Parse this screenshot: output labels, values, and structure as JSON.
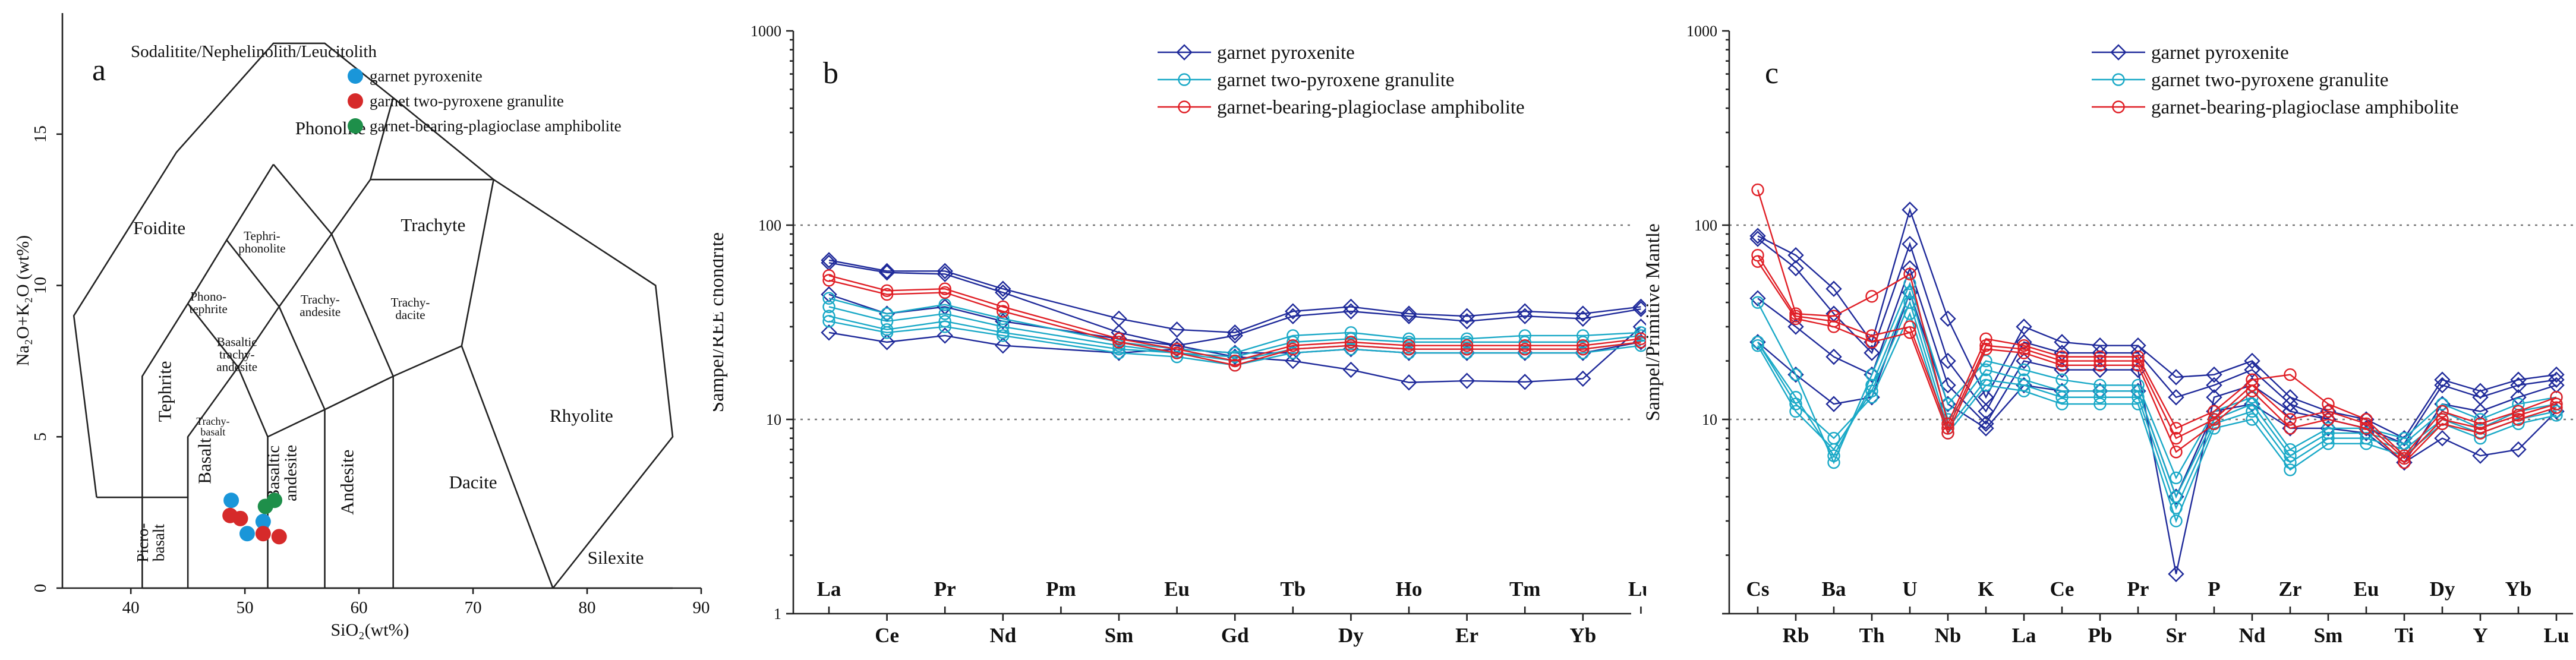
{
  "colors": {
    "garnet_pyroxenite": "#1f2a9a",
    "garnet_two_pyroxene_granulite": "#1aa9c7",
    "garnet_bearing_plagioclase_amphibolite": "#e01f26",
    "tas_pyroxenite": "#1a96d9",
    "tas_granulite": "#d62a2a",
    "tas_amphibolite": "#1e8f4a"
  },
  "chart_data": [
    {
      "type": "scatter",
      "panel_letter": "a",
      "title": "Sodalitite/Nephelinolith/Leucitolith",
      "xlabel": "SiO₂(wt%)",
      "ylabel": "Na₂O+K₂O (wt%)",
      "xlim": [
        34,
        90
      ],
      "ylim": [
        0,
        19
      ],
      "xticks": [
        40,
        50,
        60,
        70,
        80,
        90
      ],
      "yticks": [
        0,
        5,
        10,
        15
      ],
      "legend": [
        "garnet pyroxenite",
        "garnet two-pyroxene granulite",
        "garnet-bearing-plagioclase amphibolite"
      ],
      "field_labels": [
        "Phonolite",
        "Foidite",
        "Tephri-\nphonolite",
        "Trachyte",
        "Phono-\ntephrite",
        "Trachy-\nandesite",
        "Trachy-\ndacite",
        "Tephrite",
        "Basaltic\ntrachy-\nandesite",
        "Trachy-\nbasalt",
        "Rhyolite",
        "Basalt",
        "Basaltic\nandesite",
        "Andesite",
        "Dacite",
        "Picro-\nbasalt",
        "Silexite"
      ],
      "series": [
        {
          "name": "garnet pyroxenite",
          "color_key": "tas_pyroxenite",
          "points": [
            [
              48.8,
              2.9
            ],
            [
              50.2,
              1.8
            ],
            [
              51.6,
              2.2
            ]
          ]
        },
        {
          "name": "garnet two-pyroxene granulite",
          "color_key": "tas_granulite",
          "points": [
            [
              48.7,
              2.4
            ],
            [
              49.6,
              2.3
            ],
            [
              51.6,
              1.8
            ],
            [
              53,
              1.7
            ]
          ]
        },
        {
          "name": "garnet-bearing-plagioclase amphibolite",
          "color_key": "tas_amphibolite",
          "points": [
            [
              51.8,
              2.7
            ],
            [
              52.6,
              2.9
            ]
          ]
        }
      ]
    },
    {
      "type": "line",
      "panel_letter": "b",
      "ylabel": "Sampel/REE chondrite",
      "yscale": "log",
      "ylim": [
        1,
        1000
      ],
      "ytick_labels": [
        "1",
        "10",
        "100",
        "1000"
      ],
      "categories": [
        "La",
        "Ce",
        "Pr",
        "Nd",
        "Pm",
        "Sm",
        "Eu",
        "Gd",
        "Tb",
        "Dy",
        "Ho",
        "Er",
        "Tm",
        "Yb",
        "Lu"
      ],
      "legend": [
        "garnet pyroxenite",
        "garnet two-pyroxene granulite",
        "garnet-bearing-plagioclase amphibolite"
      ],
      "series": [
        {
          "name": "garnet pyroxenite",
          "group": "garnet pyroxenite",
          "values": [
            66,
            58,
            58,
            47,
            null,
            33,
            29,
            28,
            36,
            38,
            35,
            34,
            36,
            35,
            38
          ]
        },
        {
          "name": "garnet pyroxenite",
          "group": "garnet pyroxenite",
          "values": [
            64,
            57,
            56,
            45,
            null,
            28,
            24,
            27,
            34,
            36,
            34,
            32,
            34,
            33,
            37
          ]
        },
        {
          "name": "garnet pyroxenite",
          "group": "garnet pyroxenite",
          "values": [
            44,
            35,
            38,
            32,
            null,
            26,
            24,
            21,
            20,
            18,
            15.5,
            15.8,
            15.6,
            16.2,
            30
          ]
        },
        {
          "name": "garnet pyroxenite",
          "group": "garnet pyroxenite",
          "values": [
            28,
            25,
            27,
            24,
            null,
            22,
            23,
            22,
            22,
            23,
            22,
            22,
            22,
            22,
            25
          ]
        },
        {
          "name": "garnet two-pyroxene granulite",
          "group": "garnet two-pyroxene granulite",
          "values": [
            42,
            35,
            39,
            33,
            null,
            25,
            23,
            22,
            27,
            28,
            26,
            26,
            27,
            27,
            28
          ]
        },
        {
          "name": "garnet two-pyroxene granulite",
          "group": "garnet two-pyroxene granulite",
          "values": [
            38,
            32,
            35,
            30,
            null,
            24,
            22,
            21,
            25,
            26,
            25,
            25,
            25,
            25,
            27
          ]
        },
        {
          "name": "garnet two-pyroxene granulite",
          "group": "garnet two-pyroxene granulite",
          "values": [
            34,
            29,
            32,
            28,
            null,
            23,
            22,
            20,
            23,
            24,
            23,
            23,
            23,
            23,
            25
          ]
        },
        {
          "name": "garnet two-pyroxene granulite",
          "group": "garnet two-pyroxene granulite",
          "values": [
            32,
            28,
            30,
            27,
            null,
            22,
            21,
            19,
            22,
            23,
            22,
            22,
            22,
            22,
            24
          ]
        },
        {
          "name": "garnet-bearing-plagioclase amphibolite",
          "group": "garnet-bearing-plagioclase amphibolite",
          "values": [
            55,
            46,
            47,
            38,
            null,
            26,
            23,
            20,
            24,
            25,
            24,
            24,
            24,
            24,
            26
          ]
        },
        {
          "name": "garnet-bearing-plagioclase amphibolite",
          "group": "garnet-bearing-plagioclase amphibolite",
          "values": [
            52,
            44,
            45,
            36,
            null,
            25,
            22,
            19,
            23,
            24,
            23,
            23,
            23,
            23,
            25
          ]
        }
      ]
    },
    {
      "type": "line",
      "panel_letter": "c",
      "ylabel": "Sampel/Primitive Mantle",
      "yscale": "log",
      "ylim": [
        1,
        1000
      ],
      "ytick_labels": [
        "10",
        "100",
        "1000"
      ],
      "categories": [
        "Cs",
        "Rb",
        "Ba",
        "Th",
        "U",
        "Nb",
        "K",
        "La",
        "Ce",
        "Pb",
        "Pr",
        "Sr",
        "P",
        "Nd",
        "Zr",
        "Sm",
        "Eu",
        "Ti",
        "Dy",
        "Y",
        "Yb",
        "Lu"
      ],
      "legend": [
        "garnet pyroxenite",
        "garnet two-pyroxene granulite",
        "garnet-bearing-plagioclase amphibolite"
      ],
      "series": [
        {
          "name": "garnet pyroxenite",
          "group": "garnet pyroxenite",
          "values": [
            88,
            70,
            47,
            25,
            120,
            33,
            13,
            30,
            25,
            24,
            24,
            16.5,
            17,
            20,
            13,
            11,
            10,
            8,
            16,
            14,
            16,
            17
          ]
        },
        {
          "name": "garnet pyroxenite",
          "group": "garnet pyroxenite",
          "values": [
            85,
            60,
            35,
            22,
            80,
            20,
            11,
            25,
            22,
            22,
            22,
            13,
            15,
            18,
            12,
            10,
            9,
            7.5,
            15,
            13,
            15,
            16
          ]
        },
        {
          "name": "garnet pyroxenite",
          "group": "garnet pyroxenite",
          "values": [
            42,
            30,
            21,
            17,
            60,
            15,
            9.5,
            20,
            18,
            18,
            18,
            1.6,
            13,
            15,
            11,
            10,
            9,
            6,
            12,
            11,
            13,
            15
          ]
        },
        {
          "name": "garnet pyroxenite",
          "group": "garnet pyroxenite",
          "values": [
            25,
            17,
            12,
            13,
            45,
            12,
            9,
            15,
            14,
            14,
            14,
            4,
            11,
            12,
            9,
            9,
            8.5,
            6,
            8,
            6.5,
            7,
            11
          ]
        },
        {
          "name": "garnet two-pyroxene granulite",
          "group": "garnet two-pyroxene granulite",
          "values": [
            40,
            17,
            6,
            17,
            50,
            12,
            20,
            18,
            16,
            15,
            15,
            5,
            11,
            13,
            7,
            9,
            9,
            8,
            12,
            10,
            12,
            13
          ]
        },
        {
          "name": "garnet two-pyroxene granulite",
          "group": "garnet two-pyroxene granulite",
          "values": [
            25,
            13,
            6.5,
            15,
            45,
            10,
            18,
            16,
            14,
            14,
            14,
            4,
            10,
            12,
            6.5,
            8.5,
            8.5,
            7.5,
            11,
            9,
            11,
            12
          ]
        },
        {
          "name": "garnet two-pyroxene granulite",
          "group": "garnet two-pyroxene granulite",
          "values": [
            24,
            11,
            7,
            14,
            40,
            9,
            16,
            15,
            13,
            13,
            13,
            3.5,
            9.5,
            11,
            6,
            8,
            8,
            7,
            10,
            8.5,
            10,
            11
          ]
        },
        {
          "name": "garnet two-pyroxene granulite",
          "group": "garnet two-pyroxene granulite",
          "values": [
            25,
            12,
            8,
            13,
            35,
            8.5,
            15,
            14,
            12,
            12,
            12,
            3,
            9,
            10,
            5.5,
            7.5,
            7.5,
            6.5,
            9.5,
            8,
            9.5,
            10.5
          ]
        },
        {
          "name": "garnet-bearing-plagioclase amphibolite",
          "group": "garnet-bearing-plagioclase amphibolite",
          "values": [
            152,
            35,
            34,
            43,
            56,
            9.5,
            26,
            24,
            21,
            21,
            21,
            9,
            11,
            16,
            17,
            12,
            10,
            6.5,
            11,
            9.5,
            11,
            13
          ]
        },
        {
          "name": "garnet-bearing-plagioclase amphibolite",
          "group": "garnet-bearing-plagioclase amphibolite",
          "values": [
            70,
            34,
            32,
            27,
            30,
            9,
            24,
            23,
            20,
            20,
            20,
            8,
            10,
            15,
            10,
            11,
            9.5,
            6.3,
            10,
            9,
            10.5,
            12
          ]
        },
        {
          "name": "garnet-bearing-plagioclase amphibolite",
          "group": "garnet-bearing-plagioclase amphibolite",
          "values": [
            65,
            33,
            30,
            25,
            28,
            8.5,
            23,
            22,
            19,
            19,
            19,
            6.8,
            9.5,
            14,
            9,
            10,
            9,
            6,
            9.5,
            8.5,
            10,
            11.5
          ]
        }
      ]
    }
  ]
}
